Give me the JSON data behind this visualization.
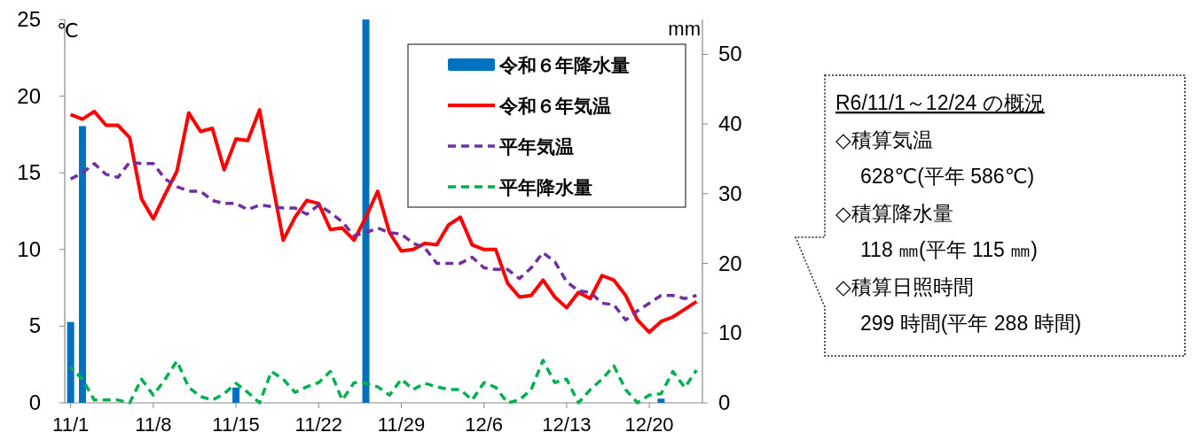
{
  "chart_data": {
    "type": "bar",
    "categories": [
      "11/1",
      null,
      null,
      null,
      null,
      null,
      null,
      "11/8",
      null,
      null,
      null,
      null,
      null,
      null,
      "11/15",
      null,
      null,
      null,
      null,
      null,
      null,
      "11/22",
      null,
      null,
      null,
      null,
      null,
      null,
      "11/29",
      null,
      null,
      null,
      null,
      null,
      null,
      "12/6",
      null,
      null,
      null,
      null,
      null,
      null,
      "12/13",
      null,
      null,
      null,
      null,
      null,
      null,
      "12/20",
      null,
      null,
      null,
      null
    ],
    "ylabel": "℃",
    "y2label": "mm",
    "ylim": [
      0,
      25
    ],
    "yticks": [
      0,
      5,
      10,
      15,
      20,
      25
    ],
    "y2lim": [
      0,
      55
    ],
    "y2ticks": [
      0,
      10,
      20,
      30,
      40,
      50
    ],
    "legend": "top right",
    "series": [
      {
        "name": "令和６年降水量",
        "axis": "y2",
        "color": "#0070c0",
        "values": [
          11.6,
          39.7,
          0,
          0,
          0,
          0,
          0,
          0,
          0,
          0,
          0,
          0,
          0,
          0,
          2.2,
          0,
          0,
          0,
          0,
          0,
          0,
          0,
          0,
          0,
          0,
          55,
          0,
          0,
          0,
          0,
          0,
          0,
          0,
          0,
          0,
          0,
          0,
          0,
          0,
          0,
          0,
          0,
          0,
          0,
          0,
          0,
          0,
          0,
          0,
          0,
          0.6,
          0,
          0,
          0
        ]
      },
      {
        "name": "令和６年気温",
        "type": "line",
        "color": "#ff0000",
        "line_style": "solid",
        "values": [
          18.8,
          18.5,
          19.0,
          18.1,
          18.1,
          17.3,
          13.3,
          12.0,
          13.6,
          15.1,
          18.9,
          17.7,
          17.9,
          15.2,
          17.2,
          17.1,
          19.1,
          14.7,
          10.6,
          12.1,
          13.2,
          13.0,
          11.3,
          11.4,
          10.6,
          12.1,
          13.8,
          11.1,
          9.9,
          10.0,
          10.4,
          10.3,
          11.6,
          12.1,
          10.3,
          10.0,
          10.0,
          7.8,
          6.9,
          7.0,
          8.0,
          6.9,
          6.2,
          7.2,
          6.8,
          8.3,
          8.0,
          7.0,
          5.4,
          4.6,
          5.3,
          5.6,
          6.1,
          6.6
        ]
      },
      {
        "name": "平年気温",
        "type": "line",
        "color": "#7030a0",
        "line_style": "dashed",
        "values": [
          14.6,
          15.0,
          15.6,
          14.9,
          14.7,
          15.7,
          15.6,
          15.6,
          14.6,
          14.1,
          13.8,
          13.8,
          13.2,
          13.0,
          13.0,
          12.6,
          12.9,
          12.8,
          12.7,
          12.7,
          12.3,
          12.9,
          12.4,
          11.8,
          10.9,
          11.1,
          11.4,
          11.1,
          11.0,
          10.4,
          10.1,
          9.1,
          9.1,
          9.1,
          9.5,
          8.8,
          8.7,
          8.7,
          8.1,
          8.8,
          9.8,
          9.2,
          7.9,
          7.3,
          7.2,
          6.5,
          6.4,
          5.4,
          6.0,
          6.5,
          7.0,
          7.0,
          6.8,
          7.0
        ]
      },
      {
        "name": "平年降水量",
        "type": "line",
        "axis": "y2",
        "color": "#00b050",
        "line_style": "dashed",
        "values": [
          5.1,
          3.4,
          0.4,
          0.4,
          0.4,
          0,
          3.4,
          1.1,
          3.4,
          6.0,
          2.2,
          0.9,
          0.4,
          1.3,
          2.8,
          1.5,
          0,
          4.5,
          3.4,
          1.5,
          2.3,
          2.9,
          4.5,
          0.4,
          2.9,
          2.8,
          2.3,
          1.1,
          3.4,
          1.9,
          2.8,
          2.3,
          1.9,
          1.9,
          0.4,
          2.9,
          2.2,
          0,
          0.4,
          1.9,
          6.1,
          2.9,
          3.4,
          0,
          1.9,
          3.4,
          5.3,
          1.9,
          0,
          1.1,
          1.3,
          4.5,
          2.2,
          4.7
        ]
      }
    ],
    "annotations": [
      "R6/11/1～12/24 の概況",
      "◇積算気温",
      "628℃(平年 586℃)",
      "◇積算降水量",
      "118 ㎜(平年 115 ㎜)",
      "◇積算日照時間",
      "299 時間(平年 288 時間)"
    ]
  }
}
